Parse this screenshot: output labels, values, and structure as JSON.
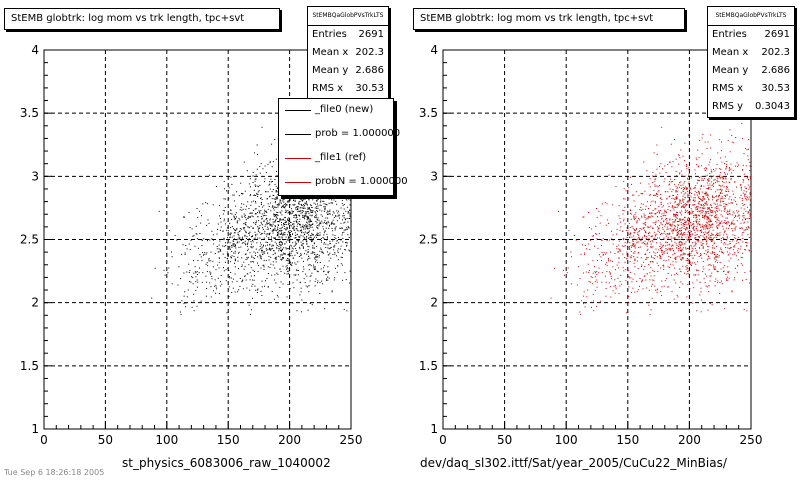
{
  "colors": {
    "left_points": "#000000",
    "right_points": "#cc0000",
    "grid": "#000000",
    "legend_ref": "#cc0000"
  },
  "chart_data": [
    {
      "type": "scatter",
      "title": "StEMB globtrk: log mom vs trk length, tpc+svt",
      "xlabel": "st_physics_6083006_raw_1040002",
      "ylabel": "",
      "xlim": [
        0,
        250
      ],
      "ylim": [
        1,
        4
      ],
      "x_ticks": [
        "0",
        "50",
        "100",
        "150",
        "200",
        "250"
      ],
      "y_ticks": [
        "1",
        "1.5",
        "2",
        "2.5",
        "3",
        "3.5",
        "4"
      ],
      "grid": true,
      "point_color": "#000000",
      "cluster_center": [
        210,
        2.6
      ],
      "stats": {
        "header": "StEMBQaGlobPVsTrkLTS",
        "rows": [
          {
            "key": "Entries",
            "value": "2691"
          },
          {
            "key": "Mean x",
            "value": "202.3"
          },
          {
            "key": "Mean y",
            "value": "2.686"
          },
          {
            "key": "RMS x",
            "value": "30.53"
          }
        ]
      },
      "legend": {
        "placement": "top-right",
        "entries": [
          {
            "label": "_file0 (new)",
            "color": "#000000"
          },
          {
            "label": "prob = 1.000000",
            "color": "#000000"
          },
          {
            "label": "_file1 (ref)",
            "color": "#cc0000"
          },
          {
            "label": "probN = 1.000000",
            "color": "#cc0000"
          }
        ]
      }
    },
    {
      "type": "scatter",
      "title": "StEMB globtrk: log mom vs trk length, tpc+svt",
      "xlabel": "dev/daq_sl302.ittf/Sat/year_2005/CuCu22_MinBias/",
      "ylabel": "",
      "xlim": [
        0,
        250
      ],
      "ylim": [
        1,
        4
      ],
      "x_ticks": [
        "0",
        "50",
        "100",
        "150",
        "200",
        "250"
      ],
      "y_ticks": [
        "1",
        "1.5",
        "2",
        "2.5",
        "3",
        "3.5",
        "4"
      ],
      "grid": true,
      "point_color": "#cc0000",
      "cluster_center": [
        210,
        2.7
      ],
      "stats": {
        "header": "StEMBQaGlobPVsTrkLTS",
        "rows": [
          {
            "key": "Entries",
            "value": "2691"
          },
          {
            "key": "Mean x",
            "value": "202.3"
          },
          {
            "key": "Mean y",
            "value": "2.686"
          },
          {
            "key": "RMS x",
            "value": "30.53"
          },
          {
            "key": "RMS y",
            "value": "0.3043"
          }
        ]
      }
    }
  ],
  "footer_text": "Tue Sep 6 18:26:18 2005"
}
